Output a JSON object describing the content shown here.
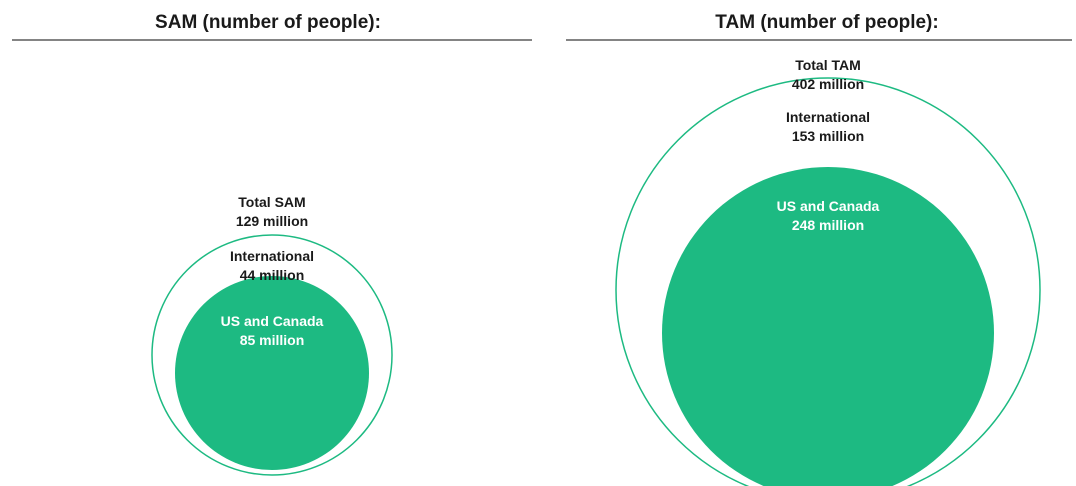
{
  "colors": {
    "accent": "#1dba82",
    "outline": "#1dba82",
    "rule": "#3a3a3a",
    "text": "#1a1a1a",
    "inner_text": "#ffffff"
  },
  "chart_data": [
    {
      "type": "bubble",
      "title": "SAM (number of people):",
      "unit": "million",
      "total": {
        "label": "Total SAM",
        "value": 129,
        "value_text": "129 million"
      },
      "segments": [
        {
          "label": "International",
          "value": 44,
          "value_text": "44 million"
        },
        {
          "label": "US and Canada",
          "value": 85,
          "value_text": "85 million"
        }
      ]
    },
    {
      "type": "bubble",
      "title": "TAM (number of people):",
      "unit": "million",
      "total": {
        "label": "Total TAM",
        "value": 402,
        "value_text": "402 million"
      },
      "segments": [
        {
          "label": "International",
          "value": 153,
          "value_text": "153 million"
        },
        {
          "label": "US and Canada",
          "value": 248,
          "value_text": "248 million"
        }
      ]
    }
  ]
}
